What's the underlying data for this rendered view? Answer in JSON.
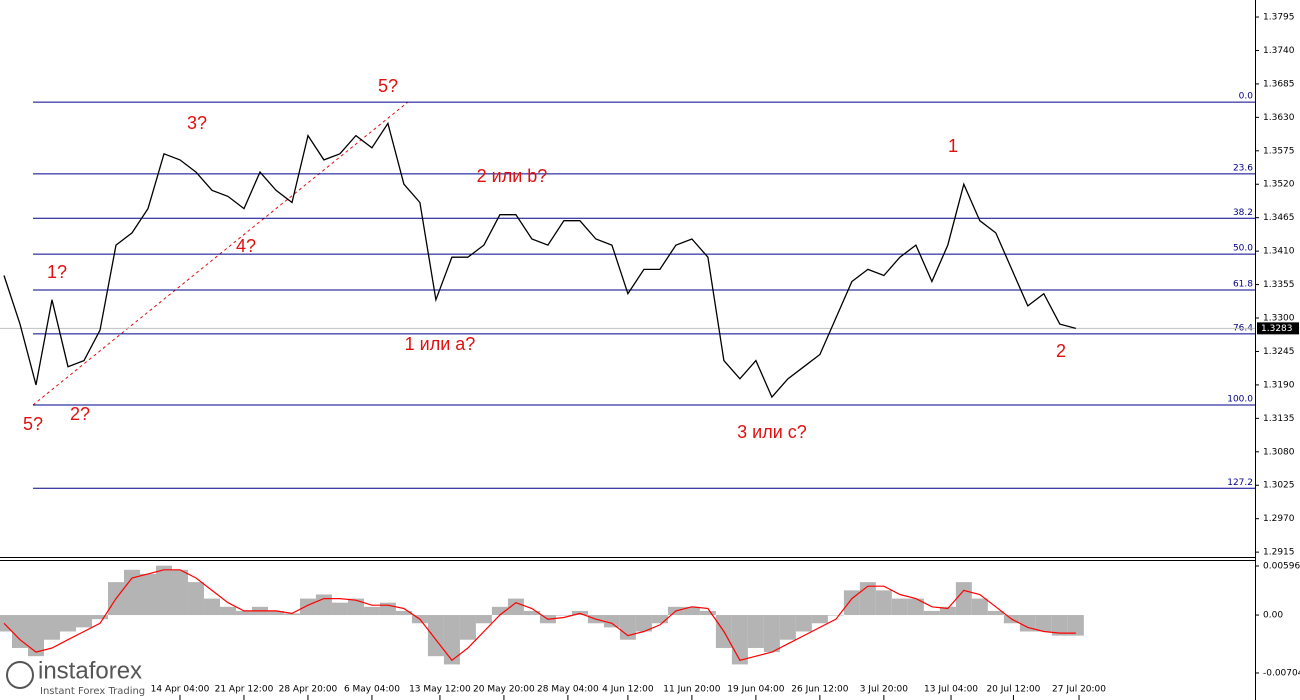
{
  "chart_data": [
    {
      "type": "line",
      "color": "#000000",
      "values": [
        1.337,
        1.329,
        1.319,
        1.333,
        1.322,
        1.323,
        1.328,
        1.342,
        1.344,
        1.348,
        1.357,
        1.356,
        1.354,
        1.351,
        1.35,
        1.348,
        1.354,
        1.351,
        1.349,
        1.36,
        1.356,
        1.357,
        1.36,
        1.358,
        1.362,
        1.352,
        1.349,
        1.333,
        1.34,
        1.34,
        1.342,
        1.347,
        1.347,
        1.343,
        1.342,
        1.346,
        1.346,
        1.343,
        1.342,
        1.334,
        1.338,
        1.338,
        1.342,
        1.343,
        1.34,
        1.323,
        1.32,
        1.323,
        1.317,
        1.32,
        1.322,
        1.324,
        1.33,
        1.336,
        1.338,
        1.337,
        1.34,
        1.342,
        1.336,
        1.342,
        1.352,
        1.346,
        1.344,
        1.338,
        1.332,
        1.334,
        1.329,
        1.3283
      ],
      "xlim": [
        -0.25,
        78.2
      ],
      "xticks": [
        {
          "value": 11,
          "label": "14 Apr 04:00"
        },
        {
          "value": 15,
          "label": "21 Apr 12:00"
        },
        {
          "value": 19,
          "label": "28 Apr 20:00"
        },
        {
          "value": 23,
          "label": "6 May 04:00"
        },
        {
          "value": 27.25,
          "label": "13 May 12:00"
        },
        {
          "value": 31.25,
          "label": "20 May 20:00"
        },
        {
          "value": 35.25,
          "label": "28 May 04:00"
        },
        {
          "value": 39,
          "label": "4 Jun 12:00"
        },
        {
          "value": 43,
          "label": "11 Jun 20:00"
        },
        {
          "value": 47,
          "label": "19 Jun 04:00"
        },
        {
          "value": 51,
          "label": "26 Jun 12:00"
        },
        {
          "value": 55,
          "label": "3 Jul 20:00"
        },
        {
          "value": 59.2,
          "label": "13 Jul 04:00"
        },
        {
          "value": 63.1,
          "label": "20 Jul 12:00"
        },
        {
          "value": 67.2,
          "label": "27 Jul 20:00"
        }
      ],
      "ylim": [
        1.2907,
        1.3823
      ],
      "yticks": [
        1.2915,
        {
          "value": 1.297,
          "label": "1.2970"
        },
        1.3025,
        {
          "value": 1.308,
          "label": "1.3080"
        },
        1.3135,
        {
          "value": 1.319,
          "label": "1.3190"
        },
        1.3245,
        {
          "value": 1.33,
          "label": "1.3300"
        },
        1.3355,
        {
          "value": 1.341,
          "label": "1.3410"
        },
        1.3465,
        {
          "value": 1.352,
          "label": "1.3520"
        },
        1.3575,
        {
          "value": 1.363,
          "label": "1.3630"
        },
        1.3685,
        {
          "value": 1.374,
          "label": "1.3740"
        },
        1.3795
      ],
      "last_price": 1.3283,
      "fib_color": "#00008b",
      "fib_levels": [
        {
          "label": "0.0",
          "value": 1.3655
        },
        {
          "label": "23.6",
          "value": 1.3537
        },
        {
          "label": "38.2",
          "value": 1.3464
        },
        {
          "label": "50.0",
          "value": 1.3405
        },
        {
          "label": "61.8",
          "value": 1.3346
        },
        {
          "label": "76.4",
          "value": 1.3274
        },
        {
          "label": "100.0",
          "value": 1.3157
        },
        {
          "label": "127.2",
          "value": 1.302
        }
      ],
      "annotations": [
        "5?",
        "1?",
        "2?",
        "3?",
        "4?",
        "5?",
        "2 или b?",
        "1 или a?",
        "3 или с?",
        "1",
        "2"
      ]
    },
    {
      "type": "bar",
      "ylim": [
        -0.00996,
        0.00669
      ],
      "yticks": [
        0.00596,
        {
          "value": 0,
          "label": "0.00"
        },
        -0.00704
      ],
      "series": [
        {
          "color": "#b4b4b4",
          "values": [
            -0.002,
            -0.004,
            -0.005,
            -0.003,
            -0.002,
            -0.0015,
            -0.0005,
            0.004,
            0.0055,
            0.005,
            0.006,
            0.0055,
            0.004,
            0.002,
            0.001,
            0.0005,
            0.001,
            0.0005,
            0.0002,
            0.002,
            0.0025,
            0.0015,
            0.002,
            0.001,
            0.0015,
            0.0005,
            -0.001,
            -0.005,
            -0.006,
            -0.003,
            -0.001,
            0.001,
            0.002,
            0.0005,
            -0.001,
            0,
            0.0005,
            -0.001,
            -0.0015,
            -0.003,
            -0.002,
            -0.001,
            0.001,
            0.001,
            0.0005,
            -0.004,
            -0.006,
            -0.004,
            -0.0045,
            -0.003,
            -0.002,
            -0.001,
            0,
            0.003,
            0.004,
            0.003,
            0.002,
            0.002,
            0.0005,
            0.001,
            0.004,
            0.002,
            0.0005,
            -0.001,
            -0.002,
            -0.002,
            -0.0025,
            -0.0025
          ]
        },
        {
          "type": "line",
          "color": "#ff0000",
          "values": [
            -0.001,
            -0.003,
            -0.0045,
            -0.004,
            -0.003,
            -0.002,
            -0.001,
            0.002,
            0.0045,
            0.005,
            0.0055,
            0.0055,
            0.0045,
            0.003,
            0.0015,
            0.0005,
            0.0005,
            0.0005,
            0.0002,
            0.0012,
            0.002,
            0.002,
            0.0018,
            0.0012,
            0.0012,
            0.0008,
            -0.0005,
            -0.003,
            -0.0055,
            -0.004,
            -0.002,
            0,
            0.0015,
            0.0008,
            -0.0005,
            -0.0003,
            0.0002,
            -0.0005,
            -0.001,
            -0.0025,
            -0.002,
            -0.0012,
            0.0005,
            0.001,
            0.0008,
            -0.002,
            -0.0055,
            -0.005,
            -0.0045,
            -0.0035,
            -0.0025,
            -0.0015,
            -0.0005,
            0.002,
            0.0035,
            0.0035,
            0.0025,
            0.002,
            0.001,
            0.0008,
            0.003,
            0.0025,
            0.001,
            -0.0005,
            -0.0015,
            -0.002,
            -0.0022,
            -0.0022
          ]
        }
      ]
    }
  ],
  "logo": {
    "name": "instaforex",
    "tagline": "Instant Forex Trading"
  }
}
